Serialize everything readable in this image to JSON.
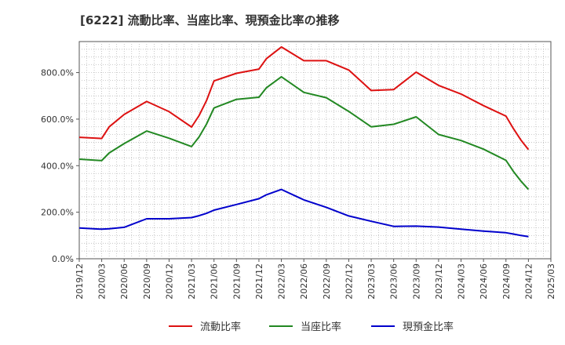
{
  "chart_data": {
    "type": "line",
    "title": "[6222]  流動比率、当座比率、現預金比率の推移",
    "xlabel": "",
    "ylabel": "",
    "ylim": [
      0,
      933.3
    ],
    "yticks": [
      0,
      200,
      400,
      600,
      800
    ],
    "ytick_labels": [
      "0.0%",
      "200.0%",
      "400.0%",
      "600.0%",
      "800.0%"
    ],
    "xtick_labels": [
      "2019/12",
      "2020/03",
      "2020/06",
      "2020/09",
      "2020/12",
      "2021/03",
      "2021/06",
      "2021/09",
      "2021/12",
      "2022/03",
      "2022/06",
      "2022/09",
      "2022/12",
      "2023/03",
      "2023/06",
      "2023/09",
      "2023/12",
      "2024/03",
      "2024/06",
      "2024/09",
      "2024/12",
      "2025/03"
    ],
    "x": [
      "2019/12",
      "2020/03",
      "2020/04",
      "2020/06",
      "2020/09",
      "2020/12",
      "2021/03",
      "2021/04",
      "2021/05",
      "2021/06",
      "2021/09",
      "2021/12",
      "2022/01",
      "2022/03",
      "2022/06",
      "2022/09",
      "2022/12",
      "2023/03",
      "2023/06",
      "2023/09",
      "2023/12",
      "2024/03",
      "2024/06",
      "2024/09",
      "2024/10",
      "2024/11",
      "2024/12"
    ],
    "grid": true,
    "legend_position": "bottom",
    "series": [
      {
        "name": "流動比率",
        "color": "#dd1111",
        "values": [
          522,
          517,
          567,
          620,
          676,
          632,
          566,
          615,
          680,
          764,
          797,
          815,
          860,
          910,
          851,
          851,
          811,
          723,
          727,
          802,
          745,
          708,
          658,
          613,
          559,
          510,
          469
        ]
      },
      {
        "name": "当座比率",
        "color": "#228822",
        "values": [
          428,
          422,
          455,
          495,
          549,
          518,
          482,
          523,
          579,
          648,
          685,
          694,
          735,
          782,
          715,
          692,
          633,
          567,
          578,
          610,
          534,
          508,
          471,
          423,
          375,
          334,
          298
        ]
      },
      {
        "name": "現預金比率",
        "color": "#0000cc",
        "values": [
          132,
          127,
          129,
          135,
          172,
          172,
          177,
          185,
          195,
          209,
          233,
          258,
          275,
          298,
          253,
          221,
          184,
          161,
          139,
          140,
          136,
          127,
          119,
          112,
          106,
          100,
          95
        ]
      }
    ]
  }
}
